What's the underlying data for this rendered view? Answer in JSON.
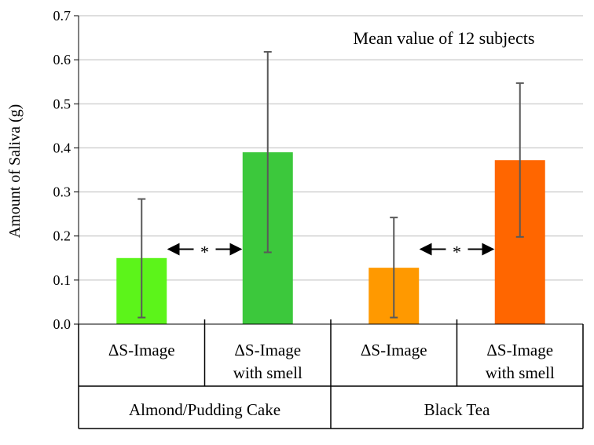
{
  "chart_data": {
    "type": "bar",
    "title": "",
    "annotation": "Mean value of 12 subjects",
    "ylabel": "Amount of Saliva (g)",
    "xlabel": "",
    "ylim": [
      0,
      0.7
    ],
    "yticks": [
      "0.0",
      "0.1",
      "0.2",
      "0.3",
      "0.4",
      "0.5",
      "0.6",
      "0.7"
    ],
    "grid": true,
    "bars": [
      {
        "label_line1": "ΔS-Image",
        "label_line2": "",
        "value": 0.15,
        "err_low": 0.015,
        "err_high": 0.284,
        "color": "#5CF41A"
      },
      {
        "label_line1": "ΔS-Image",
        "label_line2": "with smell",
        "value": 0.39,
        "err_low": 0.163,
        "err_high": 0.618,
        "color": "#3CC83C"
      },
      {
        "label_line1": "ΔS-Image",
        "label_line2": "",
        "value": 0.128,
        "err_low": 0.015,
        "err_high": 0.242,
        "color": "#FF9900"
      },
      {
        "label_line1": "ΔS-Image",
        "label_line2": "with smell",
        "value": 0.372,
        "err_low": 0.198,
        "err_high": 0.547,
        "color": "#FF6600"
      }
    ],
    "groups": [
      {
        "name": "Almond/Pudding Cake"
      },
      {
        "name": "Black Tea"
      }
    ],
    "significance": [
      {
        "between": [
          0,
          1
        ],
        "marker": "*"
      },
      {
        "between": [
          2,
          3
        ],
        "marker": "*"
      }
    ]
  }
}
